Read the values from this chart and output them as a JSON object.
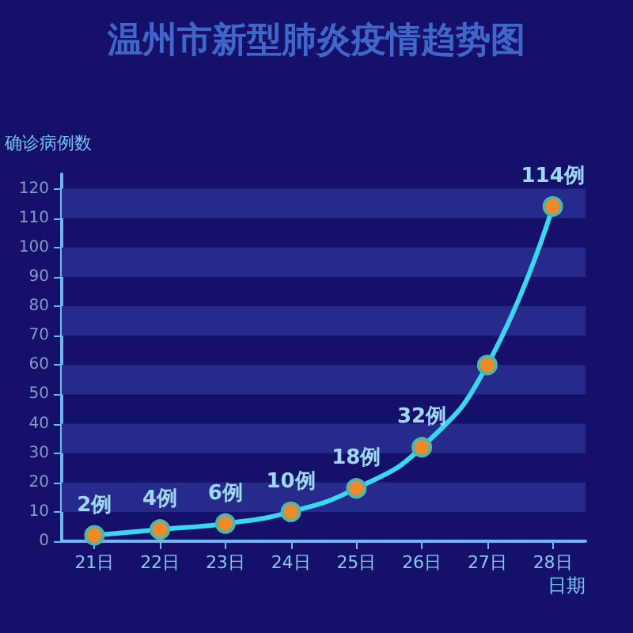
{
  "chart_data": {
    "type": "line",
    "title": "温州市新型肺炎疫情趋势图",
    "ylabel": "确诊病例数",
    "xlabel": "日期",
    "categories": [
      "21日",
      "22日",
      "23日",
      "24日",
      "25日",
      "26日",
      "27日",
      "28日"
    ],
    "series": [
      {
        "color": "#3ad8ef",
        "values": [
          2,
          4,
          6,
          10,
          18,
          32,
          60,
          114
        ],
        "value_labels": [
          "2例",
          "4例",
          "6例",
          "10例",
          "18例",
          "32例",
          null,
          "114例"
        ]
      }
    ],
    "ylim": [
      0,
      125
    ],
    "yticks": [
      0,
      10,
      20,
      30,
      40,
      50,
      60,
      70,
      80,
      90,
      100,
      110,
      120
    ],
    "bands": [
      {
        "axis": "y",
        "from": 10,
        "to": 20,
        "color": "#262a8a"
      },
      {
        "axis": "y",
        "from": 30,
        "to": 40,
        "color": "#262a8a"
      },
      {
        "axis": "y",
        "from": 50,
        "to": 60,
        "color": "#262a8a"
      },
      {
        "axis": "y",
        "from": 70,
        "to": 80,
        "color": "#262a8a"
      },
      {
        "axis": "y",
        "from": 90,
        "to": 100,
        "color": "#262a8a"
      },
      {
        "axis": "y",
        "from": 110,
        "to": 120,
        "color": "#262a8a"
      }
    ],
    "marker": "circle",
    "line_style": "solid"
  }
}
